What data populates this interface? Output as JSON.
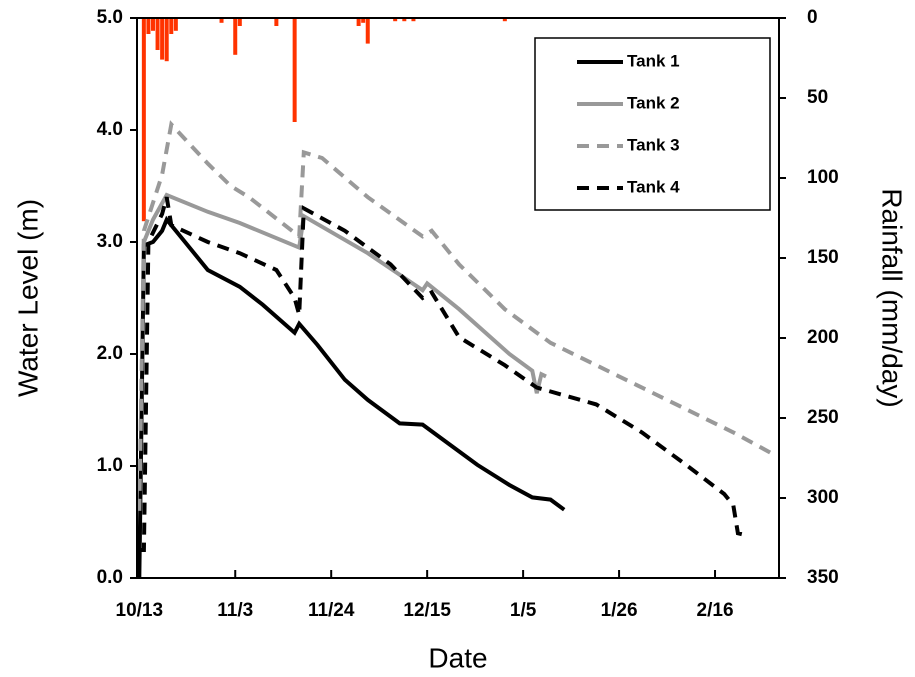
{
  "chart_data": {
    "type": "line",
    "xlabel": "Date",
    "ylabel": "Water Level (m)",
    "y2label": "Rainfall (mm/day)",
    "xlim": [
      -0.5,
      140
    ],
    "xticks": [
      {
        "value": 0,
        "label": "10/13"
      },
      {
        "value": 21,
        "label": "11/3"
      },
      {
        "value": 42,
        "label": "11/24"
      },
      {
        "value": 63,
        "label": "12/15"
      },
      {
        "value": 84,
        "label": "1/5"
      },
      {
        "value": 105,
        "label": "1/26"
      },
      {
        "value": 126,
        "label": "2/16"
      }
    ],
    "ylim": [
      0,
      5
    ],
    "yticks": [
      {
        "value": 0,
        "label": "0.0"
      },
      {
        "value": 1,
        "label": "1.0"
      },
      {
        "value": 2,
        "label": "2.0"
      },
      {
        "value": 3,
        "label": "3.0"
      },
      {
        "value": 4,
        "label": "4.0"
      },
      {
        "value": 5,
        "label": "5.0"
      }
    ],
    "y2lim": [
      350,
      0
    ],
    "y2ticks": [
      0,
      50,
      100,
      150,
      200,
      250,
      300,
      350
    ],
    "legend": "upper right",
    "series": [
      {
        "name": "Tank 1",
        "color": "#000000",
        "dash": "solid",
        "x": [
          0,
          1,
          3,
          5,
          6,
          10,
          15,
          22,
          27,
          34,
          35,
          39,
          45,
          50,
          57,
          62,
          68,
          74,
          81,
          86,
          90,
          93
        ],
        "values": [
          0,
          2.97,
          3.0,
          3.1,
          3.2,
          3.0,
          2.75,
          2.6,
          2.44,
          2.19,
          2.27,
          2.08,
          1.77,
          1.59,
          1.38,
          1.37,
          1.19,
          1.01,
          0.83,
          0.72,
          0.7,
          0.61
        ]
      },
      {
        "name": "Tank 2",
        "color": "#999999",
        "dash": "solid",
        "x": [
          1,
          3,
          6,
          15,
          22,
          35,
          36,
          50,
          62,
          63,
          70,
          81,
          86,
          87,
          88,
          89
        ],
        "values": [
          3.0,
          3.2,
          3.42,
          3.27,
          3.17,
          2.95,
          3.23,
          2.9,
          2.57,
          2.63,
          2.4,
          2.0,
          1.85,
          1.65,
          1.82,
          1.8
        ]
      },
      {
        "name": "Tank 3",
        "color": "#999999",
        "dash": "dashed",
        "x": [
          0,
          1,
          5,
          7,
          15,
          20,
          24,
          35,
          36,
          40,
          50,
          62,
          64,
          70,
          80,
          90,
          110,
          130,
          139
        ],
        "values": [
          0.6,
          3.1,
          3.6,
          4.05,
          3.7,
          3.5,
          3.4,
          3.05,
          3.8,
          3.75,
          3.4,
          3.05,
          3.1,
          2.8,
          2.4,
          2.1,
          1.7,
          1.3,
          1.1
        ]
      },
      {
        "name": "Tank 4",
        "color": "#000000",
        "dash": "dashed",
        "x": [
          0,
          1,
          2,
          5,
          6,
          7,
          15,
          22,
          30,
          34,
          35,
          36,
          45,
          55,
          62,
          64,
          70,
          80,
          87,
          100,
          110,
          120,
          128,
          130,
          131,
          133
        ],
        "values": [
          0.25,
          0.25,
          3.0,
          3.25,
          3.4,
          3.15,
          3.0,
          2.9,
          2.75,
          2.5,
          2.35,
          3.3,
          3.1,
          2.8,
          2.5,
          2.55,
          2.15,
          1.9,
          1.7,
          1.55,
          1.3,
          1.0,
          0.75,
          0.65,
          0.4,
          0.38
        ]
      },
      {
        "type": "bar",
        "axis": "y2",
        "color": "#ff3300",
        "x": [
          1,
          2,
          3,
          4,
          5,
          6,
          7,
          8,
          18,
          21,
          22,
          30,
          34,
          48,
          49,
          50,
          56,
          58,
          60,
          80
        ],
        "values": [
          127,
          10,
          8,
          20,
          26,
          27,
          10,
          8,
          3,
          23,
          5,
          5,
          65,
          5,
          3,
          16,
          2,
          2,
          2,
          2
        ]
      }
    ]
  }
}
